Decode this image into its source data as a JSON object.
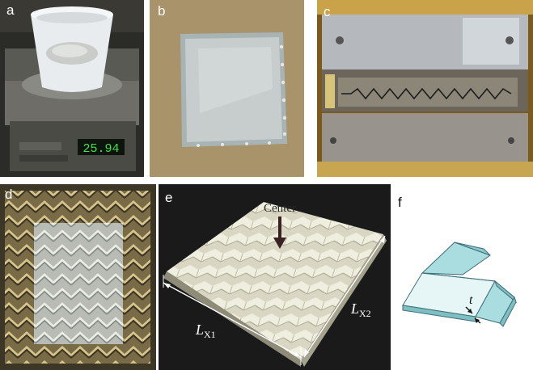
{
  "panels": [
    {
      "label": "a",
      "scale_readout": "25.94"
    },
    {
      "label": "b"
    },
    {
      "label": "c"
    },
    {
      "label": "d"
    },
    {
      "label": "e",
      "center_label": "Center",
      "lx1_main": "L",
      "lx1_sub": "X1",
      "lx2_main": "L",
      "lx2_sub": "X2"
    },
    {
      "label": "f",
      "thickness_label": "t"
    }
  ],
  "colors": {
    "mold_brass": "#a9936a",
    "sheet_translucent": "#d8dcd6",
    "model_blue": "#a9dde0",
    "model_edge": "#3e6f78"
  }
}
